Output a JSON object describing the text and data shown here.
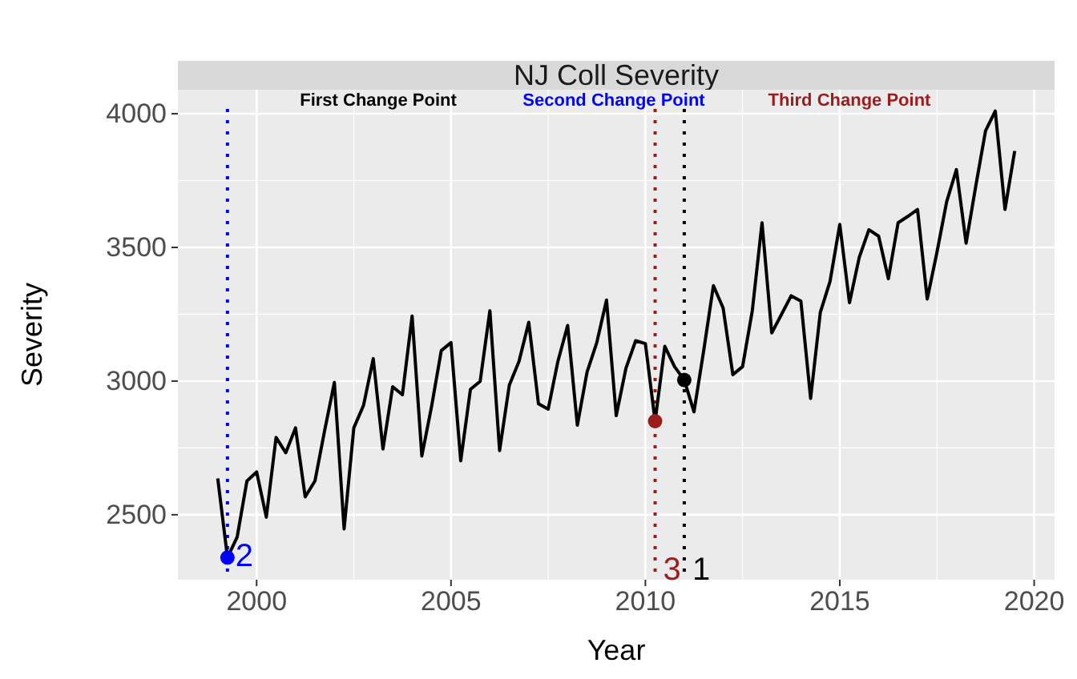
{
  "chart_data": {
    "type": "line",
    "title": "NJ Coll Severity",
    "xlabel": "Year",
    "ylabel": "Severity",
    "xlim": [
      1997.975,
      2020.525
    ],
    "ylim": [
      2257,
      4090
    ],
    "xticks": [
      2000,
      2005,
      2010,
      2015,
      2020
    ],
    "yticks": [
      2500,
      3000,
      3500,
      4000
    ],
    "grid": true,
    "series": [
      {
        "color": "#000000",
        "x": [
          1999,
          1999.25,
          1999.5,
          1999.75,
          2000,
          2000.25,
          2000.5,
          2000.75,
          2001,
          2001.25,
          2001.5,
          2001.75,
          2002,
          2002.25,
          2002.5,
          2002.75,
          2003,
          2003.25,
          2003.5,
          2003.75,
          2004,
          2004.25,
          2004.5,
          2004.75,
          2005,
          2005.25,
          2005.5,
          2005.75,
          2006,
          2006.25,
          2006.5,
          2006.75,
          2007,
          2007.25,
          2007.5,
          2007.75,
          2008,
          2008.25,
          2008.5,
          2008.75,
          2009,
          2009.25,
          2009.5,
          2009.75,
          2010,
          2010.25,
          2010.5,
          2010.75,
          2011,
          2011.25,
          2011.5,
          2011.75,
          2012,
          2012.25,
          2012.5,
          2012.75,
          2013,
          2013.25,
          2013.5,
          2013.75,
          2014,
          2014.25,
          2014.5,
          2014.75,
          2015,
          2015.25,
          2015.5,
          2015.75,
          2016,
          2016.25,
          2016.5,
          2016.75,
          2017,
          2017.25,
          2017.5,
          2017.75,
          2018,
          2018.25,
          2018.5,
          2018.75,
          2019,
          2019.25,
          2019.5
        ],
        "values": [
          2636,
          2340,
          2417,
          2626,
          2660,
          2491,
          2789,
          2732,
          2825,
          2567,
          2626,
          2815,
          2995,
          2447,
          2825,
          2909,
          3084,
          2746,
          2979,
          2949,
          3243,
          2720,
          2905,
          3114,
          3144,
          2702,
          2969,
          2999,
          3263,
          2740,
          2985,
          3074,
          3220,
          2915,
          2895,
          3074,
          3208,
          2835,
          3034,
          3144,
          3303,
          2871,
          3048,
          3151,
          3140,
          2850,
          3130,
          3054,
          3004,
          2885,
          3114,
          3357,
          3273,
          3024,
          3054,
          3263,
          3592,
          3180,
          3249,
          3319,
          3299,
          2935,
          3257,
          3373,
          3586,
          3293,
          3462,
          3566,
          3542,
          3383,
          3592,
          3616,
          3642,
          3307,
          3482,
          3671,
          3791,
          3516,
          3731,
          3936,
          4010,
          3642,
          3861
        ]
      },
      {
        "type": "scatter",
        "x": [
          2011,
          1999.25,
          2010.25
        ],
        "values": [
          3004,
          2340,
          2850
        ],
        "colors": [
          "#000000",
          "#0000ff",
          "#9b1c1c"
        ]
      }
    ],
    "ref_lines": [
      {
        "axis": "x",
        "value": 2011,
        "label": "First Change Point",
        "color": "#000000",
        "line_style": "dotted"
      },
      {
        "axis": "x",
        "value": 1999.25,
        "label": "Second Change Point",
        "color": "#0000ff",
        "line_style": "dotted"
      },
      {
        "axis": "x",
        "value": 2010.25,
        "label": "Third Change Point",
        "color": "#9b1c1c",
        "line_style": "dotted"
      }
    ],
    "annotations": [
      {
        "text": "1",
        "x": 2011,
        "y": 2290
      },
      {
        "text": "2",
        "x": 1999.25,
        "y": 2340
      },
      {
        "text": "3",
        "x": 2010.25,
        "y": 2290
      }
    ]
  }
}
